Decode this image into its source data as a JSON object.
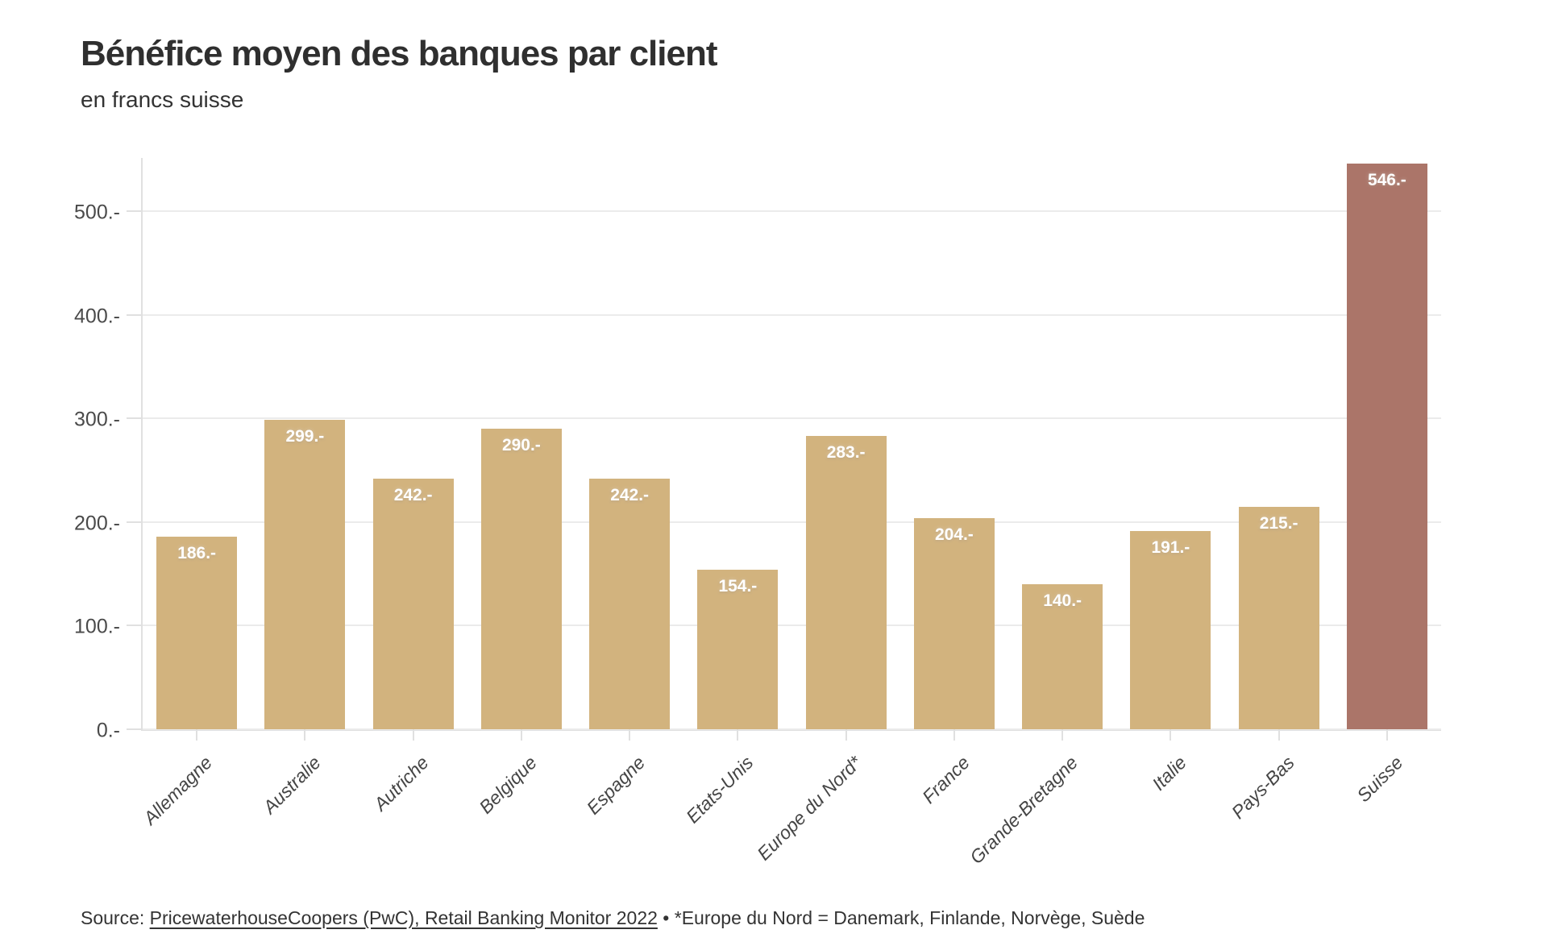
{
  "header": {
    "title": "Bénéfice moyen des banques par client",
    "subtitle": "en francs suisse"
  },
  "source": {
    "prefix": "Source: ",
    "link": "PricewaterhouseCoopers (PwC), Retail Banking Monitor 2022",
    "note": " • *Europe du Nord = Danemark, Finlande, Norvège, Suède"
  },
  "chart_data": {
    "type": "bar",
    "title": "Bénéfice moyen des banques par client",
    "subtitle": "en francs suisse",
    "unit": "francs suisses",
    "categories": [
      "Allemagne",
      "Australie",
      "Autriche",
      "Belgique",
      "Espagne",
      "Etats-Unis",
      "Europe du Nord*",
      "France",
      "Grande-Bretagne",
      "Italie",
      "Pays-Bas",
      "Suisse"
    ],
    "values": [
      186,
      299,
      242,
      290,
      242,
      154,
      283,
      204,
      140,
      191,
      215,
      546
    ],
    "bar_labels": [
      "186.-",
      "299.-",
      "242.-",
      "290.-",
      "242.-",
      "154.-",
      "283.-",
      "204.-",
      "140.-",
      "191.-",
      "215.-",
      "546.-"
    ],
    "highlight_index": 11,
    "y_ticks": [
      {
        "value": 0,
        "label": "0.-"
      },
      {
        "value": 100,
        "label": "100.-"
      },
      {
        "value": 200,
        "label": "200.-"
      },
      {
        "value": 300,
        "label": "300.-"
      },
      {
        "value": 400,
        "label": "400.-"
      },
      {
        "value": 500,
        "label": "500.-"
      }
    ],
    "ylim": [
      0,
      553
    ],
    "grid": "horizontal",
    "legend": "none",
    "colors": {
      "bar": "#d2b37e",
      "highlight": "#ab7569",
      "gridline": "#ebebeb",
      "axis": "#e0e0e0",
      "axis_text": "#4a4a4a",
      "value_text": "#ffffff"
    }
  }
}
